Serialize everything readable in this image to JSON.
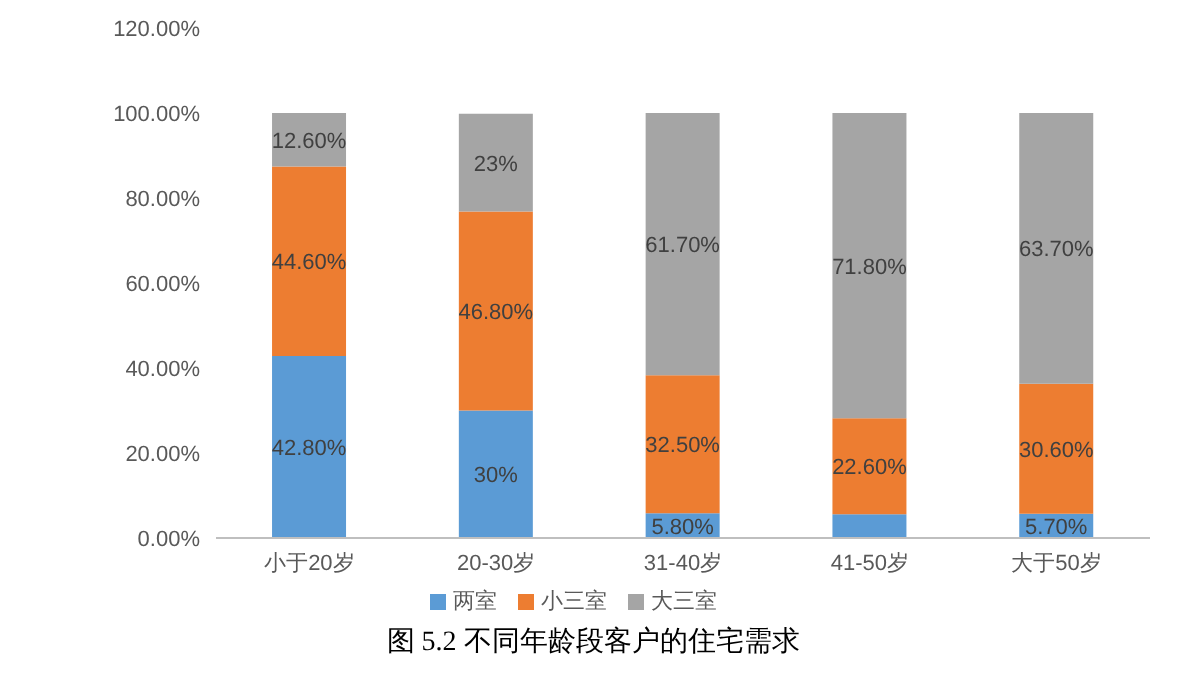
{
  "chart_data": {
    "type": "bar",
    "title": "图 5.2 不同年龄段客户的住宅需求",
    "stacked": true,
    "categories": [
      "小于20岁",
      "20-30岁",
      "31-40岁",
      "41-50岁",
      "大于50岁"
    ],
    "series": [
      {
        "name": "两室",
        "color": "#5b9bd5",
        "values": [
          42.8,
          30,
          5.8,
          5.6,
          5.7
        ],
        "value_labels": [
          "42.80%",
          "30%",
          "5.80%",
          null,
          "5.70%"
        ]
      },
      {
        "name": "小三室",
        "color": "#ed7d31",
        "values": [
          44.6,
          46.8,
          32.5,
          22.6,
          30.6
        ],
        "value_labels": [
          "44.60%",
          "46.80%",
          "32.50%",
          "22.60%",
          "30.60%"
        ]
      },
      {
        "name": "大三室",
        "color": "#a5a5a5",
        "values": [
          12.6,
          23,
          61.7,
          71.8,
          63.7
        ],
        "value_labels": [
          "12.60%",
          "23%",
          "61.70%",
          "71.80%",
          "63.70%"
        ]
      }
    ],
    "ylim": [
      0,
      120
    ],
    "yticks": [
      {
        "value": 0,
        "label": "0.00%"
      },
      {
        "value": 20,
        "label": "20.00%"
      },
      {
        "value": 40,
        "label": "40.00%"
      },
      {
        "value": 60,
        "label": "60.00%"
      },
      {
        "value": 80,
        "label": "80.00%"
      },
      {
        "value": 100,
        "label": "100.00%"
      },
      {
        "value": 120,
        "label": "120.00%"
      }
    ],
    "legend": "bottom"
  }
}
